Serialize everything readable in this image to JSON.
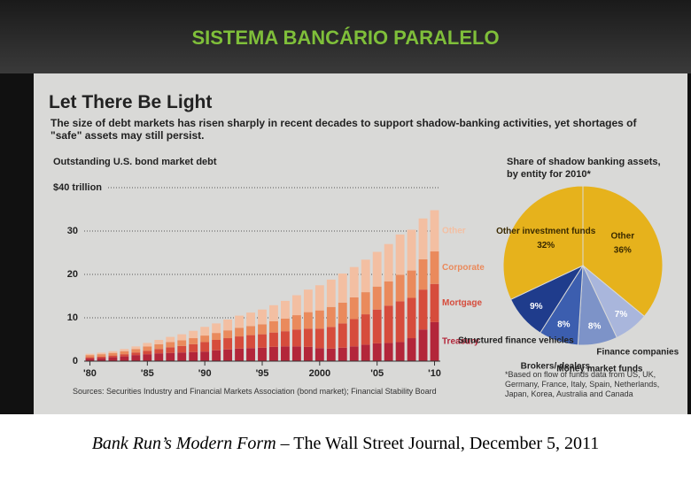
{
  "slide_title": "SISTEMA BANCÁRIO PARALELO",
  "caption": {
    "source_title": "Bank Run’s Modern Form",
    "rest": "– The Wall Street Journal, December 5, 2011"
  },
  "chart_data": [
    {
      "type": "bar",
      "stacked": true,
      "title": "Let There Be Light",
      "subtitle": "The size of debt markets has risen sharply in recent decades to support shadow-banking activities, yet shortages of \"safe\" assets may still persist.",
      "y_label": "Outstanding U.S. bond market debt",
      "source": "Sources: Securities Industry and Financial Markets Association (bond market); Financial Stability Board",
      "categories": [
        "'80",
        null,
        null,
        null,
        null,
        "'85",
        null,
        null,
        null,
        null,
        "'90",
        null,
        null,
        null,
        null,
        "'95",
        null,
        null,
        null,
        null,
        "2000",
        null,
        null,
        null,
        null,
        "'05",
        null,
        null,
        null,
        null,
        "'10"
      ],
      "ylim": [
        0,
        40
      ],
      "yticks": [
        0,
        10,
        20,
        30,
        {
          "value": 40,
          "label": "$40 trillion"
        }
      ],
      "grid": true,
      "series": [
        {
          "name": "Treasury",
          "color": "#b3263a",
          "values": [
            0.6,
            0.7,
            0.9,
            1.1,
            1.4,
            1.6,
            1.8,
            1.9,
            2.0,
            2.1,
            2.2,
            2.5,
            2.7,
            2.9,
            3.0,
            3.1,
            3.3,
            3.4,
            3.4,
            3.3,
            3.0,
            2.9,
            3.1,
            3.4,
            3.8,
            4.1,
            4.2,
            4.4,
            5.3,
            7.3,
            9.0
          ]
        },
        {
          "name": "Mortgage",
          "color": "#d64c3c",
          "values": [
            0.3,
            0.35,
            0.4,
            0.5,
            0.6,
            0.8,
            1.0,
            1.3,
            1.5,
            1.8,
            2.2,
            2.4,
            2.6,
            2.8,
            3.0,
            3.1,
            3.3,
            3.5,
            3.9,
            4.2,
            4.5,
            5.0,
            5.6,
            6.3,
            7.0,
            7.8,
            8.6,
            9.4,
            9.3,
            9.2,
            8.8
          ]
        },
        {
          "name": "Corporate",
          "color": "#ea8a5c",
          "values": [
            0.5,
            0.55,
            0.6,
            0.7,
            0.8,
            1.0,
            1.1,
            1.2,
            1.3,
            1.4,
            1.5,
            1.6,
            1.8,
            2.0,
            2.1,
            2.3,
            2.6,
            2.9,
            3.3,
            3.8,
            4.2,
            4.6,
            4.8,
            5.0,
            5.1,
            5.3,
            5.6,
            6.1,
            6.3,
            7.0,
            7.5
          ]
        },
        {
          "name": "Other",
          "color": "#f3bfa2",
          "values": [
            0.3,
            0.35,
            0.4,
            0.5,
            0.6,
            0.8,
            1.0,
            1.2,
            1.4,
            1.7,
            2.0,
            2.2,
            2.5,
            2.8,
            3.1,
            3.4,
            3.7,
            4.1,
            4.6,
            5.2,
            5.8,
            6.3,
            6.7,
            7.0,
            7.5,
            8.0,
            8.6,
            9.3,
            9.4,
            9.4,
            9.5
          ]
        }
      ]
    },
    {
      "type": "pie",
      "title": "Share of shadow banking assets, by entity for 2010*",
      "categories": [
        "Other",
        "Finance companies",
        "Money market funds",
        "Brokers/ dealers",
        "Structured finance vehicles",
        "Other investment funds"
      ],
      "values": [
        36,
        7,
        8,
        8,
        9,
        32
      ],
      "value_labels": [
        "36%",
        "7%",
        "8%",
        "8%",
        "9%",
        "32%"
      ],
      "colors": [
        "#e6b21c",
        "#a9b6dc",
        "#7d93c8",
        "#3c5eaf",
        "#1f3c8c",
        "#e6b21c"
      ],
      "footnote": "*Based on flow of funds data from US, UK, Germany, France, Italy, Spain, Netherlands, Japan, Korea, Australia and Canada"
    }
  ]
}
